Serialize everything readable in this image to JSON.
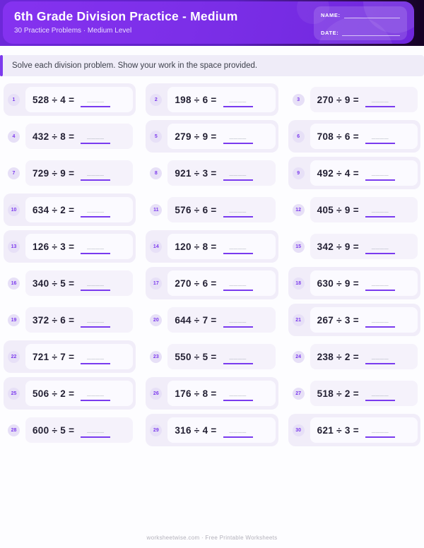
{
  "header": {
    "title": "6th Grade Division Practice - Medium",
    "subtitle": "30 Practice Problems · Medium Level",
    "name_label": "NAME:",
    "date_label": "DATE:"
  },
  "instructions": {
    "text": "Solve each division problem. Show your work in the space provided."
  },
  "worksheet": {
    "blank_placeholder": "____",
    "problems": [
      {
        "num": "1",
        "expression": "528 ÷ 4 ="
      },
      {
        "num": "2",
        "expression": "198 ÷ 6 ="
      },
      {
        "num": "3",
        "expression": "270 ÷ 9 ="
      },
      {
        "num": "4",
        "expression": "432 ÷ 8 ="
      },
      {
        "num": "5",
        "expression": "279 ÷ 9 ="
      },
      {
        "num": "6",
        "expression": "708 ÷ 6 ="
      },
      {
        "num": "7",
        "expression": "729 ÷ 9 ="
      },
      {
        "num": "8",
        "expression": "921 ÷ 3 ="
      },
      {
        "num": "9",
        "expression": "492 ÷ 4 ="
      },
      {
        "num": "10",
        "expression": "634 ÷ 2 ="
      },
      {
        "num": "11",
        "expression": "576 ÷ 6 ="
      },
      {
        "num": "12",
        "expression": "405 ÷ 9 ="
      },
      {
        "num": "13",
        "expression": "126 ÷ 3 ="
      },
      {
        "num": "14",
        "expression": "120 ÷ 8 ="
      },
      {
        "num": "15",
        "expression": "342 ÷ 9 ="
      },
      {
        "num": "16",
        "expression": "340 ÷ 5 ="
      },
      {
        "num": "17",
        "expression": "270 ÷ 6 ="
      },
      {
        "num": "18",
        "expression": "630 ÷ 9 ="
      },
      {
        "num": "19",
        "expression": "372 ÷ 6 ="
      },
      {
        "num": "20",
        "expression": "644 ÷ 7 ="
      },
      {
        "num": "21",
        "expression": "267 ÷ 3 ="
      },
      {
        "num": "22",
        "expression": "721 ÷ 7 ="
      },
      {
        "num": "23",
        "expression": "550 ÷ 5 ="
      },
      {
        "num": "24",
        "expression": "238 ÷ 2 ="
      },
      {
        "num": "25",
        "expression": "506 ÷ 2 ="
      },
      {
        "num": "26",
        "expression": "176 ÷ 8 ="
      },
      {
        "num": "27",
        "expression": "518 ÷ 2 ="
      },
      {
        "num": "28",
        "expression": "600 ÷ 5 ="
      },
      {
        "num": "29",
        "expression": "316 ÷ 4 ="
      },
      {
        "num": "30",
        "expression": "621 ÷ 3 ="
      }
    ]
  },
  "footer": {
    "text": "worksheetwise.com · Free Printable Worksheets"
  },
  "colors": {
    "accent": "#7c3aed",
    "header_gradient_start": "#8532f0",
    "header_gradient_end": "#6f27dd",
    "header_strip_dark": "#140224",
    "highlight_cell_bg": "#f1edf9",
    "inner_cell_bg": "#f5f2fb",
    "blank_line": "#7a3bef"
  }
}
